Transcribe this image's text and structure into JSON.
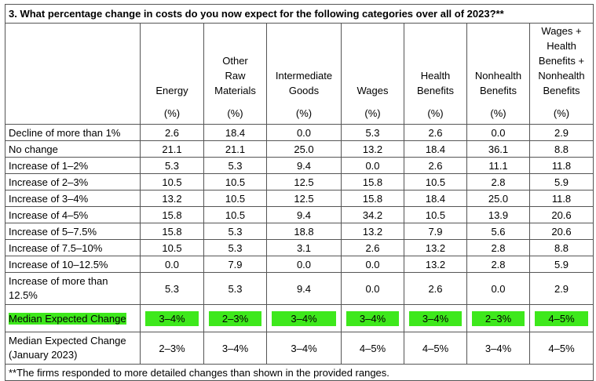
{
  "title": "3. What percentage change in costs do you now expect for the following categories over all of 2023?**",
  "columns": [
    {
      "lines": [
        "Energy"
      ],
      "unit": "(%)"
    },
    {
      "lines": [
        "Other",
        "Raw",
        "Materials"
      ],
      "unit": "(%)"
    },
    {
      "lines": [
        "Intermediate",
        "Goods"
      ],
      "unit": "(%)"
    },
    {
      "lines": [
        "Wages"
      ],
      "unit": "(%)"
    },
    {
      "lines": [
        "Health",
        "Benefits"
      ],
      "unit": "(%)"
    },
    {
      "lines": [
        "Nonhealth",
        "Benefits"
      ],
      "unit": "(%)"
    },
    {
      "lines": [
        "Wages +",
        "Health",
        "Benefits +",
        "Nonhealth",
        "Benefits"
      ],
      "unit": "(%)"
    }
  ],
  "rows": [
    {
      "label": "Decline of more than 1%",
      "values": [
        "2.6",
        "18.4",
        "0.0",
        "5.3",
        "2.6",
        "0.0",
        "2.9"
      ]
    },
    {
      "label": "No change",
      "values": [
        "21.1",
        "21.1",
        "25.0",
        "13.2",
        "18.4",
        "36.1",
        "8.8"
      ]
    },
    {
      "label": "Increase of 1–2%",
      "values": [
        "5.3",
        "5.3",
        "9.4",
        "0.0",
        "2.6",
        "11.1",
        "11.8"
      ]
    },
    {
      "label": "Increase of 2–3%",
      "values": [
        "10.5",
        "10.5",
        "12.5",
        "15.8",
        "10.5",
        "2.8",
        "5.9"
      ]
    },
    {
      "label": "Increase of 3–4%",
      "values": [
        "13.2",
        "10.5",
        "12.5",
        "15.8",
        "18.4",
        "25.0",
        "11.8"
      ]
    },
    {
      "label": "Increase of 4–5%",
      "values": [
        "15.8",
        "10.5",
        "9.4",
        "34.2",
        "10.5",
        "13.9",
        "20.6"
      ]
    },
    {
      "label": "Increase of 5–7.5%",
      "values": [
        "15.8",
        "5.3",
        "18.8",
        "13.2",
        "7.9",
        "5.6",
        "20.6"
      ]
    },
    {
      "label": "Increase of 7.5–10%",
      "values": [
        "10.5",
        "5.3",
        "3.1",
        "2.6",
        "13.2",
        "2.8",
        "8.8"
      ]
    },
    {
      "label": "Increase of 10–12.5%",
      "values": [
        "0.0",
        "7.9",
        "0.0",
        "0.0",
        "13.2",
        "2.8",
        "5.9"
      ]
    },
    {
      "label": "Increase of more than 12.5%",
      "values": [
        "5.3",
        "5.3",
        "9.4",
        "0.0",
        "2.6",
        "0.0",
        "2.9"
      ]
    }
  ],
  "median": {
    "label": "Median Expected Change",
    "values": [
      "3–4%",
      "2–3%",
      "3–4%",
      "3–4%",
      "3–4%",
      "2–3%",
      "4–5%"
    ]
  },
  "median_jan": {
    "label": "Median Expected Change (January 2023)",
    "values": [
      "2–3%",
      "3–4%",
      "3–4%",
      "4–5%",
      "4–5%",
      "3–4%",
      "4–5%"
    ]
  },
  "footnote": "**The firms responded to more detailed changes than shown in the provided ranges.",
  "colors": {
    "highlight": "#3ee81c",
    "border": "#555555"
  }
}
